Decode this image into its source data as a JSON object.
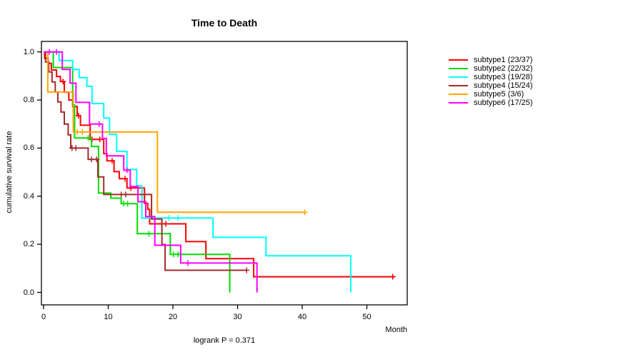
{
  "title": "Time to Death",
  "footer": {
    "logrank_label": "logrank P = 0.371"
  },
  "chart_data": {
    "type": "line",
    "subtype": "kaplan-meier-step-survival",
    "title": "Time to Death",
    "xlabel": "Month",
    "ylabel": "cumulative survival rate",
    "xlim": [
      0,
      56
    ],
    "ylim": [
      0.0,
      1.0
    ],
    "grid": false,
    "legend_position": "right-outside",
    "annotation": "logrank P = 0.371",
    "x_ticks": [
      0,
      10,
      20,
      30,
      40,
      50
    ],
    "y_ticks": [
      0.0,
      0.2,
      0.4,
      0.6,
      0.8,
      1.0
    ],
    "y_tick_labels": [
      "0.0",
      "0.2",
      "0.4",
      "0.6",
      "0.8",
      "1.0"
    ],
    "series": [
      {
        "name": "subtype1",
        "label": "subtype1 (23/37)",
        "color": "#FF0000",
        "steps": [
          [
            0,
            1
          ],
          [
            0.15,
            0.973
          ],
          [
            0.7,
            0.952
          ],
          [
            1.2,
            0.925
          ],
          [
            2,
            0.898
          ],
          [
            2.6,
            0.877
          ],
          [
            3.2,
            0.832
          ],
          [
            3.9,
            0.8
          ],
          [
            4.5,
            0.773
          ],
          [
            5.2,
            0.735
          ],
          [
            5.7,
            0.695
          ],
          [
            7.2,
            0.636
          ],
          [
            9.3,
            0.577
          ],
          [
            9.8,
            0.547
          ],
          [
            10.9,
            0.502
          ],
          [
            11.7,
            0.473
          ],
          [
            12.9,
            0.434
          ],
          [
            15.6,
            0.37
          ],
          [
            16.1,
            0.345
          ],
          [
            16.4,
            0.285
          ],
          [
            22,
            0.211
          ],
          [
            25.1,
            0.14
          ],
          [
            32.5,
            0.065
          ]
        ],
        "end": 54.3,
        "censors": [
          3,
          5.4,
          7.5,
          8.7,
          10.6,
          12.6,
          13.5,
          18.9,
          54
        ]
      },
      {
        "name": "subtype2",
        "label": "subtype2 (22/32)",
        "color": "#00DD00",
        "steps": [
          [
            0,
            1
          ],
          [
            1.5,
            0.935
          ],
          [
            4.5,
            0.78
          ],
          [
            4.8,
            0.642
          ],
          [
            7.4,
            0.607
          ],
          [
            8.5,
            0.413
          ],
          [
            10.4,
            0.392
          ],
          [
            12,
            0.369
          ],
          [
            14.5,
            0.244
          ],
          [
            19.6,
            0.158
          ],
          [
            28.8,
            0
          ]
        ],
        "end": 28.8,
        "censors": [
          6.9,
          12.4,
          13,
          16.3,
          20.1,
          20.8
        ]
      },
      {
        "name": "subtype3",
        "label": "subtype3 (19/28)",
        "color": "#00FFFF",
        "steps": [
          [
            0,
            1
          ],
          [
            2.4,
            0.964
          ],
          [
            4.5,
            0.927
          ],
          [
            5.5,
            0.893
          ],
          [
            6.7,
            0.857
          ],
          [
            7.5,
            0.785
          ],
          [
            9.3,
            0.725
          ],
          [
            10.2,
            0.657
          ],
          [
            11.3,
            0.586
          ],
          [
            12.9,
            0.511
          ],
          [
            14.4,
            0.443
          ],
          [
            15.2,
            0.309
          ],
          [
            26.2,
            0.229
          ],
          [
            34.4,
            0.152
          ],
          [
            47.5,
            0
          ]
        ],
        "end": 47.5,
        "censors": [
          19.4,
          20.8
        ]
      },
      {
        "name": "subtype4",
        "label": "subtype4 (15/24)",
        "color": "#A52A2A",
        "steps": [
          [
            0,
            1
          ],
          [
            0.3,
            0.958
          ],
          [
            0.8,
            0.917
          ],
          [
            1.3,
            0.875
          ],
          [
            1.8,
            0.833
          ],
          [
            2.2,
            0.792
          ],
          [
            2.7,
            0.75
          ],
          [
            3.2,
            0.7
          ],
          [
            3.8,
            0.655
          ],
          [
            4.2,
            0.6
          ],
          [
            6.9,
            0.553
          ],
          [
            8.4,
            0.48
          ],
          [
            9.3,
            0.407
          ],
          [
            16.7,
            0.305
          ],
          [
            18.3,
            0.199
          ],
          [
            18.8,
            0.092
          ]
        ],
        "end": 31.4,
        "censors": [
          4.4,
          5,
          7.4,
          8.2,
          12,
          12.7,
          31.4
        ]
      },
      {
        "name": "subtype5",
        "label": "subtype5 (3/6)",
        "color": "#FFA500",
        "steps": [
          [
            0,
            1
          ],
          [
            0.65,
            0.833
          ],
          [
            4.6,
            0.667
          ],
          [
            17.6,
            0.333
          ]
        ],
        "end": 40.4,
        "censors": [
          5.2,
          6,
          40.4
        ]
      },
      {
        "name": "subtype6",
        "label": "subtype6 (17/25)",
        "color": "#FF00FF",
        "steps": [
          [
            0,
            1
          ],
          [
            2.9,
            0.927
          ],
          [
            4.1,
            0.87
          ],
          [
            5,
            0.79
          ],
          [
            7.1,
            0.7
          ],
          [
            9.1,
            0.64
          ],
          [
            9.7,
            0.568
          ],
          [
            12.4,
            0.508
          ],
          [
            13.4,
            0.44
          ],
          [
            14.6,
            0.377
          ],
          [
            15.8,
            0.315
          ],
          [
            17.2,
            0.196
          ],
          [
            21.2,
            0.122
          ],
          [
            33,
            0
          ]
        ],
        "end": 33,
        "censors": [
          0.9,
          2,
          8.6,
          12.9,
          22.3
        ]
      }
    ]
  }
}
